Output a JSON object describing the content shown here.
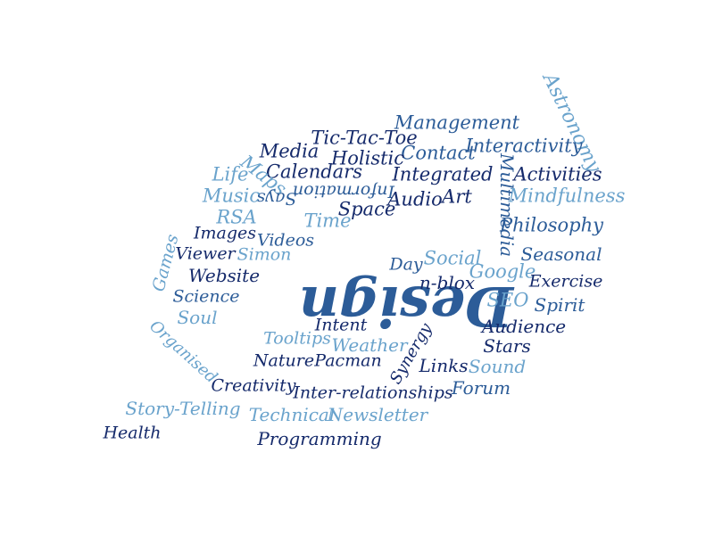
{
  "cloud": {
    "center_word": "Design",
    "colors": {
      "dark": "#152a6b",
      "mid": "#2c5c98",
      "light": "#6aa3cc"
    },
    "words": [
      "Astronomy",
      "Management",
      "Tic-Tac-Toe",
      "Media",
      "Contact",
      "Interactivity",
      "Holistic",
      "Calendars",
      "Maps",
      "Life",
      "Integrated",
      "Multimedia",
      "Activities",
      "Information",
      "Says",
      "Music",
      "Art",
      "Audio",
      "Mindfulness",
      "Space",
      "RSA",
      "Time",
      "Philosophy",
      "Images",
      "Videos",
      "Games",
      "Viewer",
      "Simon",
      "Seasonal",
      "Social",
      "Day",
      "Google",
      "Website",
      "n-blox",
      "Exercise",
      "Science",
      "SEO",
      "Spirit",
      "Soul",
      "Intent",
      "Audience",
      "Organised",
      "Tooltips",
      "Weather",
      "Synergy",
      "Stars",
      "Nature",
      "Pacman",
      "Links",
      "Sound",
      "Forum",
      "Creativity",
      "Inter-relationships",
      "Story-Telling",
      "Technical",
      "Newsletter",
      "Health",
      "Programming"
    ]
  }
}
